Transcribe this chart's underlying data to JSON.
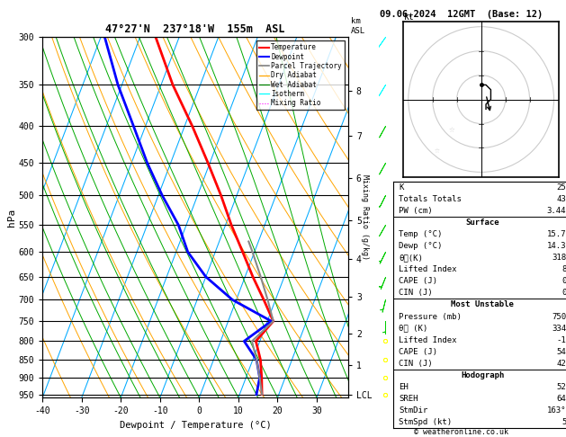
{
  "title_left": "47°27'N  237°18'W  155m  ASL",
  "title_right": "09.06.2024  12GMT  (Base: 12)",
  "xlabel": "Dewpoint / Temperature (°C)",
  "pressure_levels": [
    300,
    350,
    400,
    450,
    500,
    550,
    600,
    650,
    700,
    750,
    800,
    850,
    900,
    950
  ],
  "km_labels": [
    "8",
    "7",
    "6",
    "5",
    "4",
    "3",
    "2",
    "1",
    "LCL"
  ],
  "km_pressures": [
    357,
    412,
    472,
    541,
    614,
    694,
    780,
    865,
    952
  ],
  "temp_pressure": [
    950,
    900,
    850,
    800,
    750,
    700,
    650,
    600,
    550,
    500,
    450,
    400,
    350,
    300
  ],
  "temp_vals": [
    15.7,
    14.0,
    12.0,
    9.0,
    11.5,
    7.0,
    2.0,
    -3.0,
    -8.5,
    -14.0,
    -20.5,
    -28.0,
    -37.0,
    -46.0
  ],
  "dewp_pressure": [
    950,
    900,
    850,
    800,
    750,
    700,
    650,
    600,
    550,
    500,
    450,
    400,
    350,
    300
  ],
  "dewp_vals": [
    14.3,
    13.5,
    11.0,
    6.0,
    11.0,
    -1.0,
    -10.0,
    -17.0,
    -22.0,
    -29.0,
    -36.0,
    -43.0,
    -51.0,
    -59.0
  ],
  "parcel_pressure": [
    950,
    900,
    850,
    800,
    750,
    700,
    650,
    600,
    580
  ],
  "parcel_vals": [
    15.7,
    13.5,
    11.0,
    8.0,
    11.5,
    8.0,
    4.0,
    -0.5,
    -2.5
  ],
  "xlim": [
    -40,
    38
  ],
  "pmin": 300,
  "pmax": 960,
  "skew_factor": 35.0,
  "mixing_ratios": [
    1,
    2,
    3,
    4,
    6,
    8,
    10,
    15,
    20,
    25
  ],
  "mr_label_pressure": 582,
  "colors": {
    "temperature": "#FF0000",
    "dewpoint": "#0000FF",
    "parcel": "#888888",
    "dry_adiabat": "#FFA500",
    "wet_adiabat": "#00AA00",
    "isotherm": "#00AAFF",
    "mixing_ratio": "#FF00FF"
  },
  "stats": {
    "K": "25",
    "Totals_Totals": "43",
    "PW_cm": "3.44",
    "Surf_Temp": "15.7",
    "Surf_Dewp": "14.3",
    "Surf_theta_e": "318",
    "Surf_LI": "8",
    "Surf_CAPE": "0",
    "Surf_CIN": "0",
    "MU_Pressure": "750",
    "MU_theta_e": "334",
    "MU_LI": "-1",
    "MU_CAPE": "54",
    "MU_CIN": "42",
    "EH": "52",
    "SREH": "64",
    "StmDir": "163°",
    "StmSpd": "5"
  },
  "wind_barb_levels": [
    300,
    350,
    400,
    450,
    500,
    550,
    600,
    650,
    700,
    750,
    800,
    850,
    900,
    950
  ],
  "wind_barb_u": [
    7,
    6,
    5,
    5,
    4,
    4,
    3,
    2,
    1,
    0,
    -1,
    -2,
    -2,
    -1
  ],
  "wind_barb_v": [
    10,
    10,
    9,
    9,
    8,
    7,
    6,
    5,
    4,
    3,
    2,
    1,
    1,
    2
  ],
  "footer": "© weatheronline.co.uk"
}
